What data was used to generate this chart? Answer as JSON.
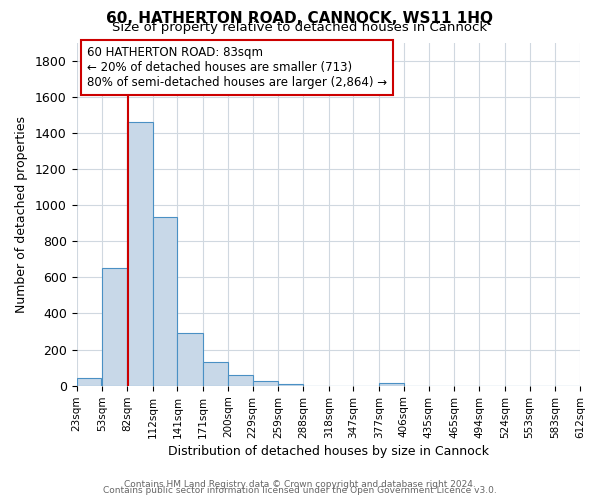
{
  "title": "60, HATHERTON ROAD, CANNOCK, WS11 1HQ",
  "subtitle": "Size of property relative to detached houses in Cannock",
  "xlabel": "Distribution of detached houses by size in Cannock",
  "ylabel": "Number of detached properties",
  "bar_left_edges": [
    23,
    53,
    82,
    112,
    141,
    171,
    200,
    229,
    259,
    288,
    318,
    347,
    377,
    406,
    435,
    465,
    494,
    524,
    553,
    583
  ],
  "bar_widths": [
    29,
    29,
    30,
    29,
    30,
    29,
    29,
    30,
    29,
    30,
    29,
    30,
    29,
    29,
    30,
    29,
    30,
    29,
    30,
    29
  ],
  "bar_heights": [
    40,
    650,
    1460,
    935,
    290,
    130,
    60,
    25,
    10,
    0,
    0,
    0,
    15,
    0,
    0,
    0,
    0,
    0,
    0,
    0
  ],
  "bar_color": "#c8d8e8",
  "bar_edge_color": "#4a90c4",
  "tick_labels": [
    "23sqm",
    "53sqm",
    "82sqm",
    "112sqm",
    "141sqm",
    "171sqm",
    "200sqm",
    "229sqm",
    "259sqm",
    "288sqm",
    "318sqm",
    "347sqm",
    "377sqm",
    "406sqm",
    "435sqm",
    "465sqm",
    "494sqm",
    "524sqm",
    "553sqm",
    "583sqm",
    "612sqm"
  ],
  "property_line_x": 83,
  "property_line_color": "#cc0000",
  "annotation_line1": "60 HATHERTON ROAD: 83sqm",
  "annotation_line2": "← 20% of detached houses are smaller (713)",
  "annotation_line3": "80% of semi-detached houses are larger (2,864) →",
  "ylim": [
    0,
    1900
  ],
  "yticks": [
    0,
    200,
    400,
    600,
    800,
    1000,
    1200,
    1400,
    1600,
    1800
  ],
  "footer_line1": "Contains HM Land Registry data © Crown copyright and database right 2024.",
  "footer_line2": "Contains public sector information licensed under the Open Government Licence v3.0.",
  "bg_color": "#ffffff",
  "grid_color": "#d0d8e0"
}
